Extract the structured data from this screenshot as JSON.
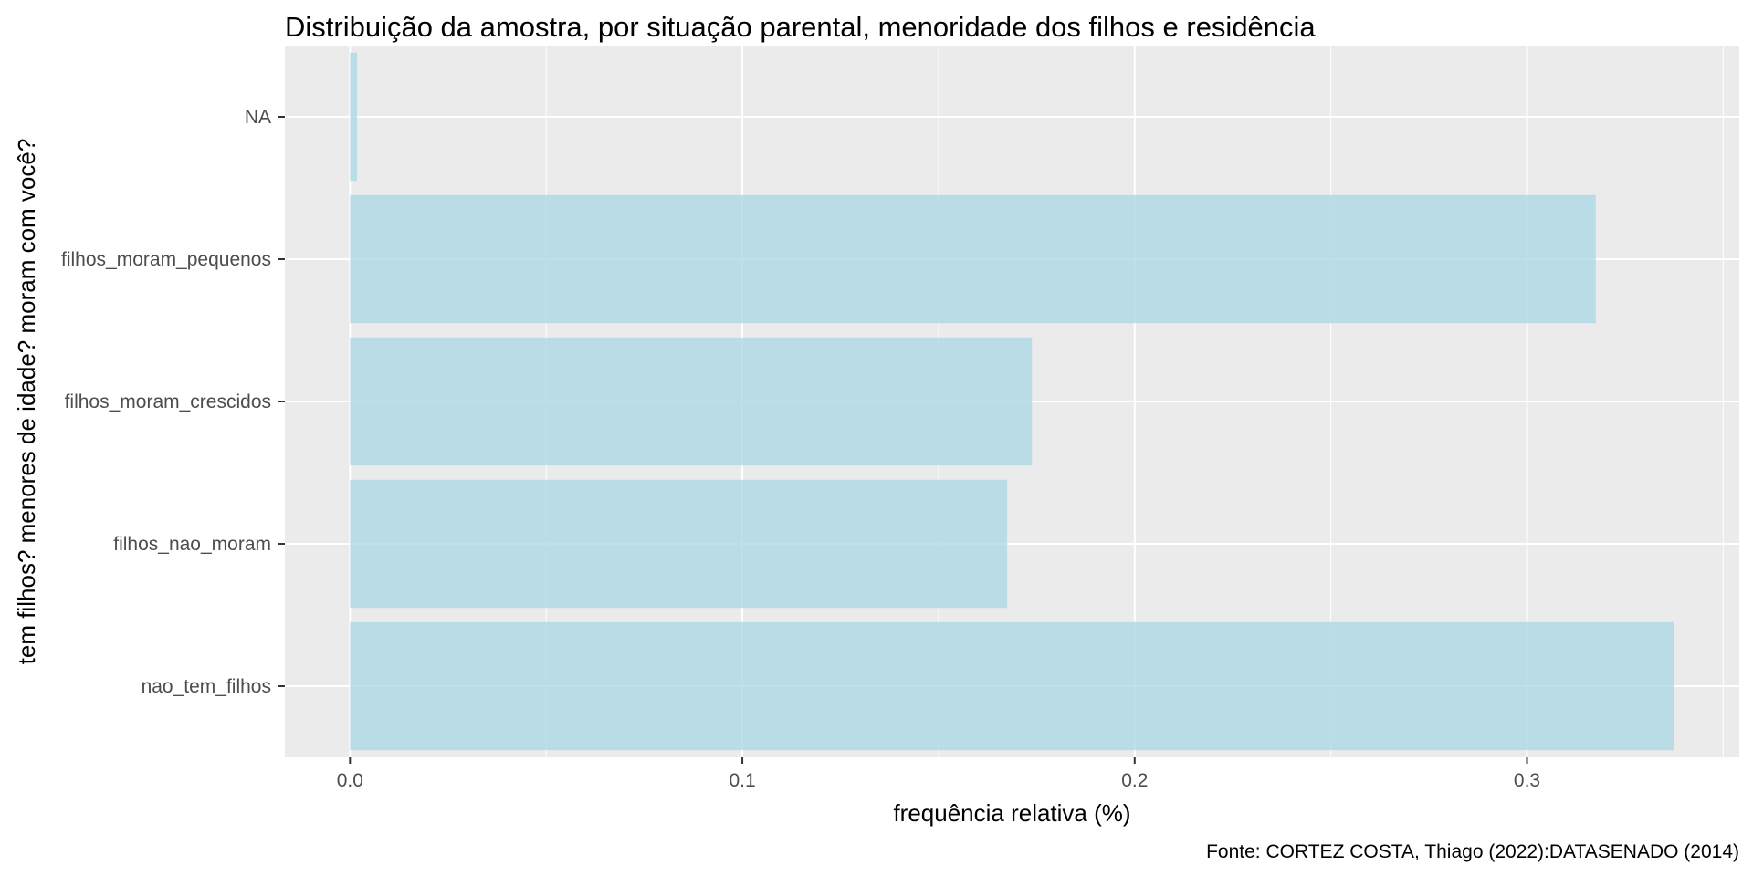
{
  "chart_data": {
    "type": "bar",
    "orientation": "horizontal",
    "title": "Distribuição da amostra, por situação parental, menoridade dos filhos e residência",
    "xlabel": "frequência relativa (%)",
    "ylabel": "tem filhos? menores de idade? moram com você?",
    "caption": "Fonte: CORTEZ COSTA, Thiago (2022):DATASENADO (2014)",
    "categories": [
      "nao_tem_filhos",
      "filhos_nao_moram",
      "filhos_moram_crescidos",
      "filhos_moram_pequenos",
      "NA"
    ],
    "values": [
      0.3375,
      0.1675,
      0.1738,
      0.3175,
      0.0018
    ],
    "xlim": [
      -0.0166,
      0.3541
    ],
    "xticks": [
      0.0,
      0.1,
      0.2,
      0.3
    ],
    "xtick_labels": [
      "0.0",
      "0.1",
      "0.2",
      "0.3"
    ],
    "grid": true,
    "legend": "none",
    "colors": {
      "bar": "#ADD8E6",
      "panel_background": "#EBEBEB",
      "grid_line": "#FFFFFF",
      "tick_label": "#4D4D4D",
      "tick_mark": "#333333",
      "text": "#000000"
    }
  }
}
